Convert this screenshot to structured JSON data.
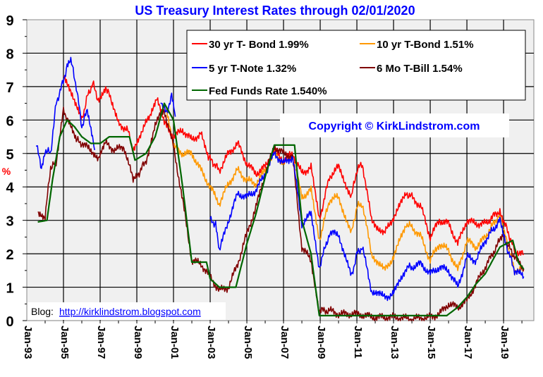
{
  "chart_data": {
    "type": "line",
    "title": "US Treasury Interest Rates through 02/01/2020",
    "ylabel": "%",
    "xlabel": "",
    "ylim": [
      0,
      9
    ],
    "xlim": [
      1993,
      2020.65
    ],
    "yticks": [
      "0",
      "1",
      "2",
      "3",
      "4",
      "5",
      "6",
      "7",
      "8",
      "9"
    ],
    "xticks": [
      {
        "label": "Jan-93",
        "year": 1993
      },
      {
        "label": "Jan-95",
        "year": 1995
      },
      {
        "label": "Jan-97",
        "year": 1997
      },
      {
        "label": "Jan-99",
        "year": 1999
      },
      {
        "label": "Jan-01",
        "year": 2001
      },
      {
        "label": "Jan-03",
        "year": 2003
      },
      {
        "label": "Jan-05",
        "year": 2005
      },
      {
        "label": "Jan-07",
        "year": 2007
      },
      {
        "label": "Jan-09",
        "year": 2009
      },
      {
        "label": "Jan-11",
        "year": 2011
      },
      {
        "label": "Jan-13",
        "year": 2013
      },
      {
        "label": "Jan-15",
        "year": 2015
      },
      {
        "label": "Jan-17",
        "year": 2017
      },
      {
        "label": "Jan-19",
        "year": 2019
      }
    ],
    "grid": true,
    "legend_position": "top-right",
    "series": [
      {
        "name": "30 yr T- Bond 1.99%",
        "color": "#ff0000",
        "points": [
          [
            1995.0,
            7.4
          ],
          [
            1995.4,
            6.9
          ],
          [
            1995.8,
            6.3
          ],
          [
            1996.0,
            6.0
          ],
          [
            1996.3,
            6.7
          ],
          [
            1996.6,
            7.1
          ],
          [
            1996.9,
            6.6
          ],
          [
            1997.3,
            7.0
          ],
          [
            1997.6,
            6.6
          ],
          [
            1998.0,
            5.9
          ],
          [
            1998.5,
            5.7
          ],
          [
            1998.8,
            5.1
          ],
          [
            1999.2,
            5.6
          ],
          [
            1999.7,
            6.1
          ],
          [
            2000.1,
            6.6
          ],
          [
            2000.5,
            5.9
          ],
          [
            2001.0,
            5.5
          ],
          [
            2001.5,
            5.7
          ],
          [
            2002.0,
            5.4
          ],
          [
            2002.5,
            5.6
          ],
          [
            2002.9,
            4.9
          ],
          [
            2003.5,
            4.5
          ],
          [
            2004.0,
            5.0
          ],
          [
            2004.5,
            5.3
          ],
          [
            2005.0,
            4.7
          ],
          [
            2005.5,
            4.4
          ],
          [
            2006.0,
            4.6
          ],
          [
            2006.5,
            5.1
          ],
          [
            2007.0,
            4.8
          ],
          [
            2007.5,
            5.0
          ],
          [
            2008.0,
            4.4
          ],
          [
            2008.5,
            4.6
          ],
          [
            2008.95,
            3.0
          ],
          [
            2009.5,
            4.3
          ],
          [
            2010.0,
            4.6
          ],
          [
            2010.7,
            3.7
          ],
          [
            2011.0,
            4.5
          ],
          [
            2011.3,
            4.7
          ],
          [
            2011.8,
            3.0
          ],
          [
            2012.5,
            2.6
          ],
          [
            2013.0,
            3.1
          ],
          [
            2013.7,
            3.8
          ],
          [
            2014.0,
            3.7
          ],
          [
            2014.5,
            3.4
          ],
          [
            2015.0,
            2.5
          ],
          [
            2015.5,
            3.0
          ],
          [
            2016.0,
            2.9
          ],
          [
            2016.5,
            2.3
          ],
          [
            2017.0,
            3.0
          ],
          [
            2017.5,
            2.9
          ],
          [
            2018.0,
            2.9
          ],
          [
            2018.8,
            3.3
          ],
          [
            2019.0,
            3.0
          ],
          [
            2019.6,
            2.1
          ],
          [
            2020.1,
            1.99
          ]
        ]
      },
      {
        "name": "10 yr  T-Bond 1.51%",
        "color": "#ff9900",
        "points": [
          [
            2000.6,
            6.3
          ],
          [
            2001.0,
            5.2
          ],
          [
            2001.5,
            5.0
          ],
          [
            2002.0,
            5.0
          ],
          [
            2002.5,
            4.5
          ],
          [
            2003.0,
            4.0
          ],
          [
            2003.5,
            3.5
          ],
          [
            2004.0,
            4.1
          ],
          [
            2004.5,
            4.5
          ],
          [
            2005.0,
            4.2
          ],
          [
            2005.5,
            4.1
          ],
          [
            2006.0,
            4.5
          ],
          [
            2006.5,
            5.0
          ],
          [
            2007.0,
            4.7
          ],
          [
            2007.5,
            4.9
          ],
          [
            2008.0,
            3.7
          ],
          [
            2008.5,
            3.9
          ],
          [
            2008.95,
            2.4
          ],
          [
            2009.5,
            3.6
          ],
          [
            2010.0,
            3.7
          ],
          [
            2010.7,
            2.6
          ],
          [
            2011.0,
            3.4
          ],
          [
            2011.3,
            3.5
          ],
          [
            2011.8,
            2.0
          ],
          [
            2012.5,
            1.5
          ],
          [
            2013.0,
            1.9
          ],
          [
            2013.7,
            2.9
          ],
          [
            2014.0,
            2.8
          ],
          [
            2014.5,
            2.5
          ],
          [
            2015.0,
            1.8
          ],
          [
            2015.5,
            2.3
          ],
          [
            2016.0,
            2.1
          ],
          [
            2016.5,
            1.5
          ],
          [
            2017.0,
            2.4
          ],
          [
            2017.5,
            2.2
          ],
          [
            2018.0,
            2.5
          ],
          [
            2018.8,
            3.2
          ],
          [
            2019.0,
            2.7
          ],
          [
            2019.6,
            1.5
          ],
          [
            2020.1,
            1.51
          ]
        ]
      },
      {
        "name": "5 yr T-Note 1.32%",
        "color": "#0000ff",
        "points": [
          [
            1993.5,
            5.3
          ],
          [
            1993.8,
            4.6
          ],
          [
            1994.0,
            5.1
          ],
          [
            1994.3,
            5.0
          ],
          [
            1994.6,
            6.5
          ],
          [
            1994.9,
            7.0
          ],
          [
            1995.2,
            7.6
          ],
          [
            1995.4,
            7.8
          ],
          [
            1995.7,
            7.0
          ],
          [
            1996.0,
            5.8
          ],
          [
            1996.3,
            6.3
          ],
          [
            1996.7,
            5.1
          ],
          null,
          [
            2000.3,
            6.6
          ],
          [
            2000.6,
            6.2
          ],
          [
            2000.9,
            6.7
          ],
          [
            2001.1,
            6.1
          ],
          null,
          [
            2003.0,
            3.0
          ],
          [
            2003.3,
            2.9
          ],
          [
            2003.5,
            2.1
          ],
          [
            2004.0,
            3.0
          ],
          [
            2004.5,
            3.8
          ],
          [
            2005.0,
            3.7
          ],
          [
            2005.5,
            3.9
          ],
          [
            2006.0,
            4.4
          ],
          [
            2006.5,
            5.0
          ],
          [
            2007.0,
            4.7
          ],
          [
            2007.5,
            4.9
          ],
          [
            2008.0,
            2.9
          ],
          [
            2008.5,
            3.2
          ],
          [
            2008.95,
            1.6
          ],
          [
            2009.5,
            2.6
          ],
          [
            2010.0,
            2.6
          ],
          [
            2010.7,
            1.3
          ],
          [
            2011.0,
            2.0
          ],
          [
            2011.3,
            2.2
          ],
          [
            2011.8,
            0.9
          ],
          [
            2012.5,
            0.7
          ],
          [
            2013.0,
            0.8
          ],
          [
            2013.7,
            1.6
          ],
          [
            2014.0,
            1.6
          ],
          [
            2014.5,
            1.7
          ],
          [
            2015.0,
            1.4
          ],
          [
            2015.5,
            1.6
          ],
          [
            2016.0,
            1.5
          ],
          [
            2016.5,
            1.0
          ],
          [
            2017.0,
            1.9
          ],
          [
            2017.5,
            1.8
          ],
          [
            2018.0,
            2.4
          ],
          [
            2018.8,
            3.0
          ],
          [
            2019.0,
            2.5
          ],
          [
            2019.6,
            1.5
          ],
          [
            2020.1,
            1.32
          ]
        ]
      },
      {
        "name": "6 Mo T-Bill 1.54%",
        "color": "#800000",
        "points": [
          [
            1993.6,
            3.2
          ],
          [
            1994.0,
            3.1
          ],
          [
            1994.3,
            4.6
          ],
          [
            1994.6,
            4.7
          ],
          [
            1995.0,
            6.3
          ],
          [
            1995.3,
            5.9
          ],
          [
            1995.7,
            5.4
          ],
          [
            1996.0,
            5.3
          ],
          [
            1996.5,
            5.1
          ],
          [
            1996.9,
            4.8
          ],
          [
            1997.3,
            5.3
          ],
          [
            1997.8,
            5.1
          ],
          [
            1998.3,
            5.2
          ],
          [
            1998.8,
            4.2
          ],
          [
            1999.0,
            4.3
          ],
          [
            1999.6,
            4.9
          ],
          [
            2000.0,
            5.9
          ],
          [
            2000.5,
            6.3
          ],
          [
            2001.0,
            5.2
          ],
          [
            2001.5,
            3.6
          ],
          [
            2002.0,
            1.8
          ],
          [
            2002.5,
            1.7
          ],
          [
            2003.0,
            1.3
          ],
          [
            2003.5,
            0.9
          ],
          [
            2004.0,
            1.0
          ],
          [
            2004.5,
            1.7
          ],
          [
            2005.0,
            2.6
          ],
          [
            2005.5,
            3.4
          ],
          [
            2006.0,
            4.4
          ],
          [
            2006.5,
            5.2
          ],
          [
            2007.0,
            5.0
          ],
          [
            2007.5,
            4.9
          ],
          [
            2008.0,
            2.2
          ],
          [
            2008.5,
            1.8
          ],
          [
            2008.95,
            0.3
          ],
          [
            2009.5,
            0.3
          ],
          [
            2010.0,
            0.2
          ],
          [
            2011.0,
            0.2
          ],
          [
            2012.0,
            0.1
          ],
          [
            2013.0,
            0.1
          ],
          [
            2014.0,
            0.05
          ],
          [
            2015.0,
            0.1
          ],
          [
            2015.5,
            0.2
          ],
          [
            2016.0,
            0.5
          ],
          [
            2016.5,
            0.4
          ],
          [
            2017.0,
            0.6
          ],
          [
            2017.5,
            1.1
          ],
          [
            2018.0,
            1.6
          ],
          [
            2018.8,
            2.4
          ],
          [
            2019.0,
            2.5
          ],
          [
            2019.6,
            1.9
          ],
          [
            2020.1,
            1.54
          ]
        ]
      },
      {
        "name": "Fed Funds Rate 1.540%",
        "color": "#006600",
        "points": [
          [
            1993.6,
            2.95
          ],
          [
            1994.1,
            3.0
          ],
          [
            1994.4,
            4.2
          ],
          [
            1994.8,
            5.5
          ],
          [
            1995.2,
            6.0
          ],
          [
            1995.6,
            5.8
          ],
          [
            1996.0,
            5.5
          ],
          [
            1996.5,
            5.3
          ],
          [
            1997.0,
            5.3
          ],
          [
            1997.5,
            5.5
          ],
          [
            1998.0,
            5.5
          ],
          [
            1998.6,
            5.5
          ],
          [
            1998.9,
            4.8
          ],
          [
            1999.5,
            5.0
          ],
          [
            2000.0,
            5.5
          ],
          [
            2000.5,
            6.5
          ],
          [
            2001.0,
            6.0
          ],
          [
            2001.5,
            4.0
          ],
          [
            2002.0,
            1.75
          ],
          [
            2002.8,
            1.75
          ],
          [
            2003.0,
            1.25
          ],
          [
            2003.5,
            1.0
          ],
          [
            2004.4,
            1.0
          ],
          [
            2005.0,
            2.3
          ],
          [
            2005.5,
            3.2
          ],
          [
            2006.0,
            4.3
          ],
          [
            2006.5,
            5.25
          ],
          [
            2007.6,
            5.25
          ],
          [
            2008.0,
            3.0
          ],
          [
            2008.5,
            2.0
          ],
          [
            2008.95,
            0.15
          ],
          [
            2015.9,
            0.15
          ],
          [
            2016.5,
            0.4
          ],
          [
            2017.0,
            0.7
          ],
          [
            2017.5,
            1.1
          ],
          [
            2018.0,
            1.4
          ],
          [
            2018.8,
            2.2
          ],
          [
            2019.5,
            2.4
          ],
          [
            2019.8,
            1.75
          ],
          [
            2020.1,
            1.54
          ]
        ]
      }
    ],
    "annotations": {
      "copyright": "Copyright ©  KirkLindstrom.com",
      "blog_label": "Blog:",
      "blog_link": "http://kirklindstrom.blogspot.com"
    }
  }
}
